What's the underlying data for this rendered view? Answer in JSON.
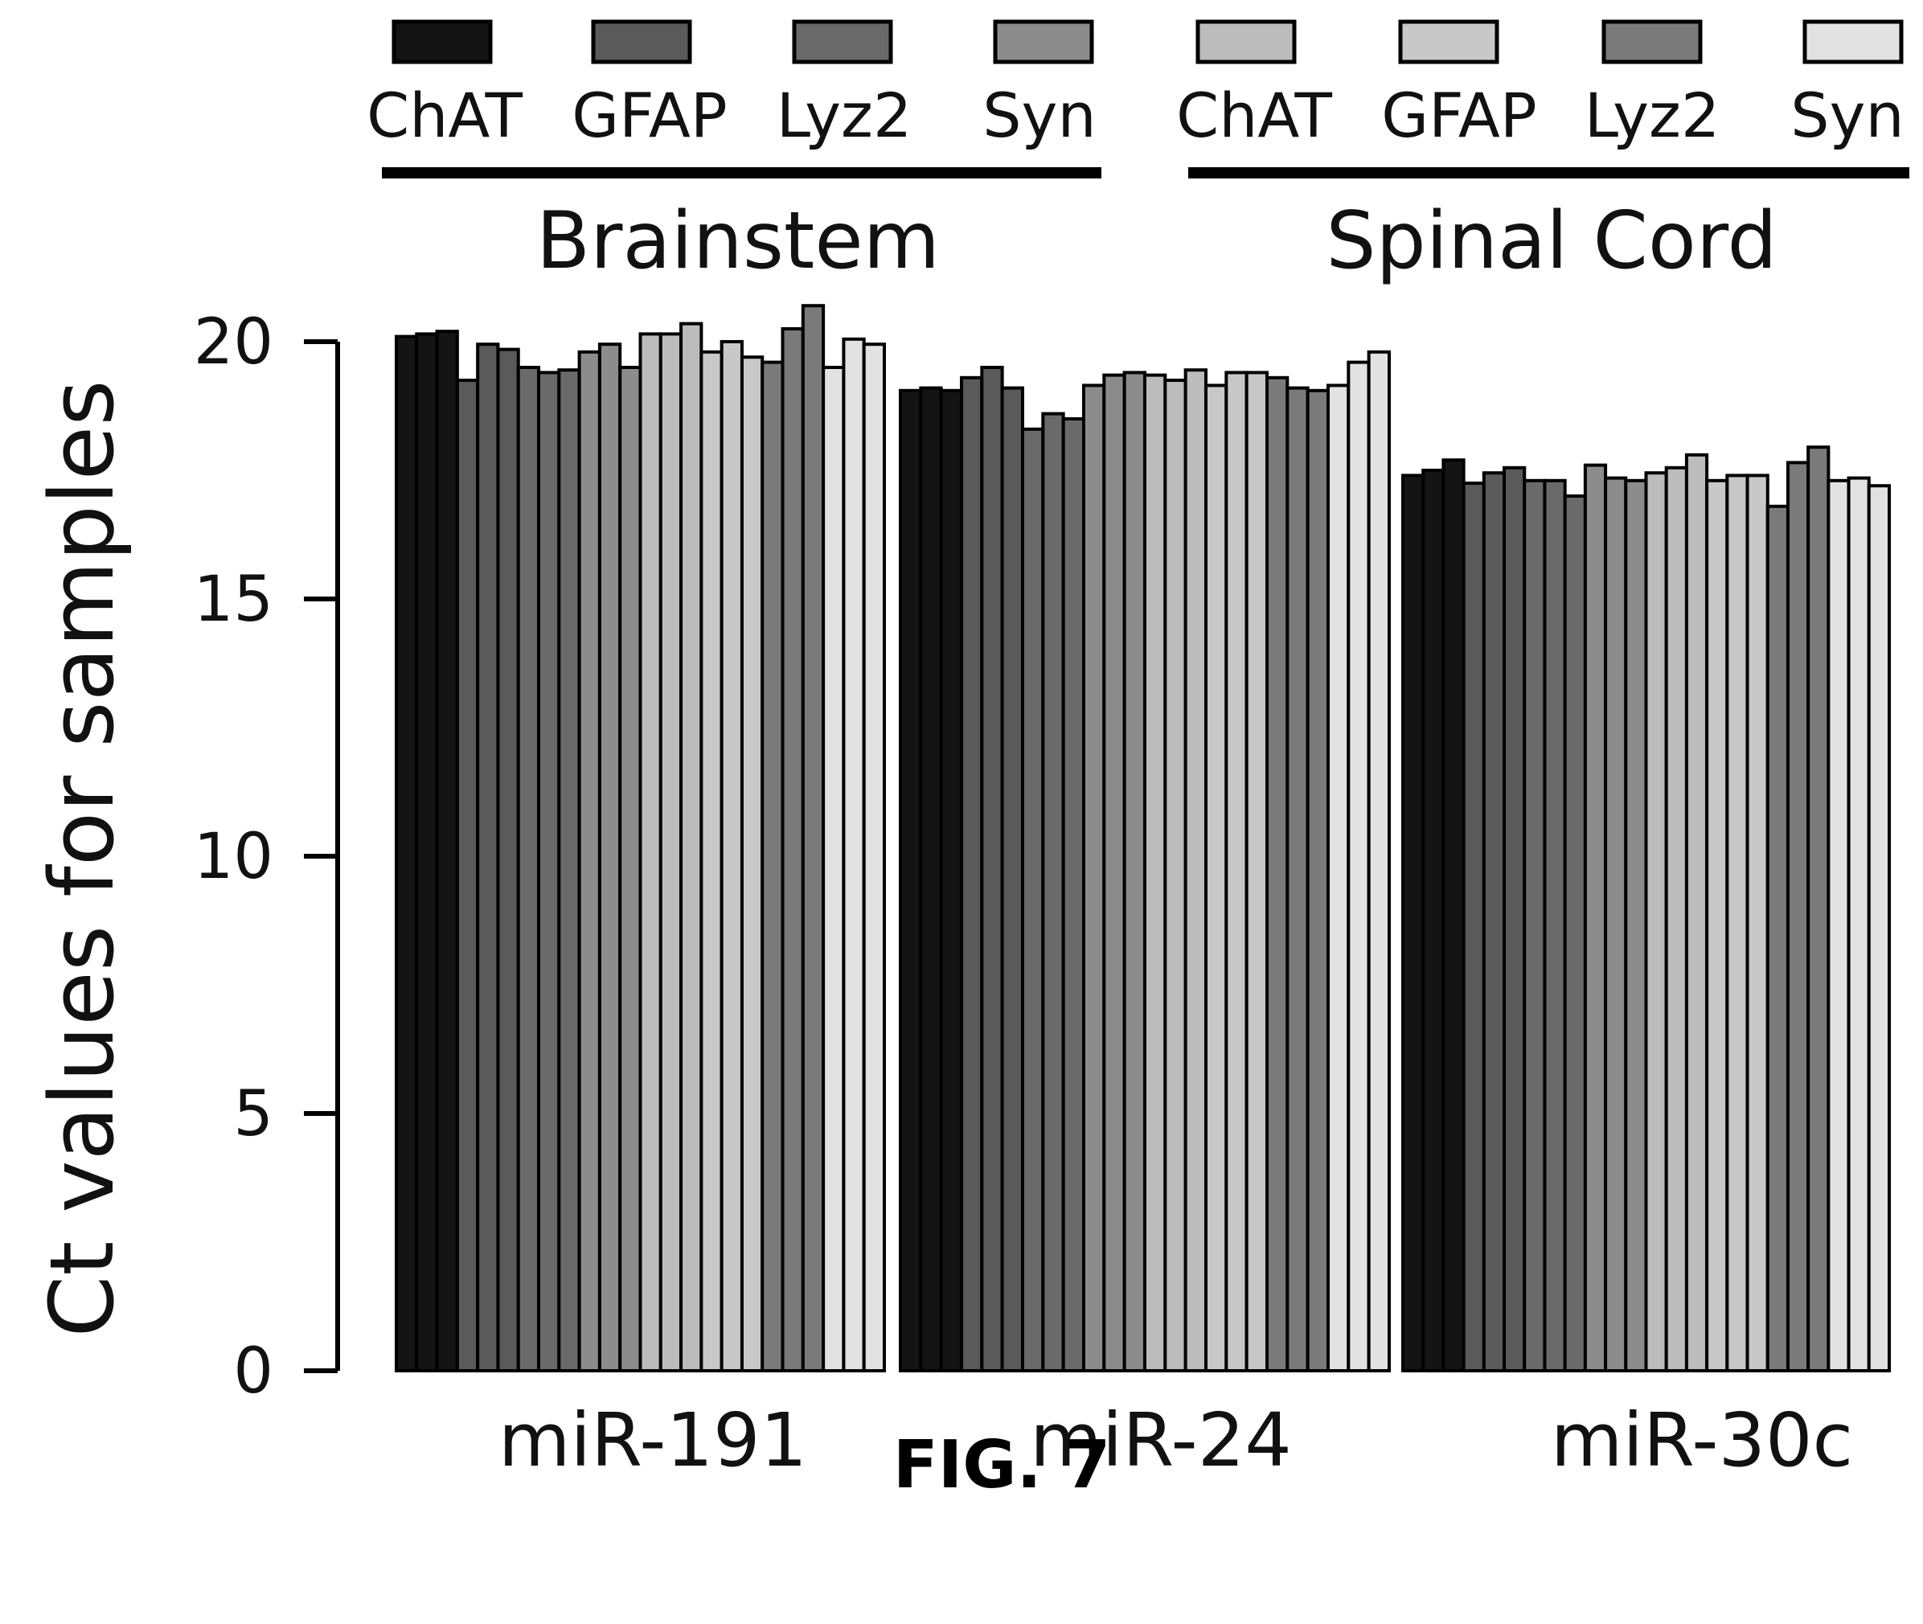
{
  "chart_data": {
    "type": "bar",
    "ylabel": "Ct values for samples",
    "ylim": [
      0,
      20
    ],
    "yticks": [
      "0",
      "5",
      "10",
      "15",
      "20"
    ],
    "grid": false,
    "legend_placement": "top",
    "legend": {
      "groups": [
        {
          "name": "Brainstem",
          "items": [
            {
              "label": "ChAT",
              "color": "#141414"
            },
            {
              "label": "GFAP",
              "color": "#5a5a5a"
            },
            {
              "label": "Lyz2",
              "color": "#6a6a6a"
            },
            {
              "label": "Syn",
              "color": "#8c8c8c"
            }
          ]
        },
        {
          "name": "Spinal Cord",
          "items": [
            {
              "label": "ChAT",
              "color": "#bcbcbc"
            },
            {
              "label": "GFAP",
              "color": "#c8c8c8"
            },
            {
              "label": "Lyz2",
              "color": "#7a7a7a"
            },
            {
              "label": "Syn",
              "color": "#e2e2e2"
            }
          ]
        }
      ]
    },
    "categories": [
      "miR-191",
      "miR-24",
      "miR-30c"
    ],
    "bars_per_category": [
      {
        "category": "miR-191",
        "values": [
          20.1,
          20.15,
          20.2,
          19.25,
          19.95,
          19.85,
          19.5,
          19.4,
          19.45,
          19.8,
          19.95,
          19.5,
          20.15,
          20.15,
          20.35,
          19.8,
          20.0,
          19.7,
          19.6,
          20.25,
          20.7,
          19.5,
          20.05,
          19.95
        ],
        "colors": [
          "#141414",
          "#141414",
          "#141414",
          "#5a5a5a",
          "#5a5a5a",
          "#5a5a5a",
          "#6a6a6a",
          "#6a6a6a",
          "#6a6a6a",
          "#8c8c8c",
          "#8c8c8c",
          "#8c8c8c",
          "#bcbcbc",
          "#bcbcbc",
          "#bcbcbc",
          "#c8c8c8",
          "#c8c8c8",
          "#c8c8c8",
          "#7a7a7a",
          "#7a7a7a",
          "#7a7a7a",
          "#e2e2e2",
          "#e2e2e2",
          "#e2e2e2"
        ]
      },
      {
        "category": "miR-24",
        "values": [
          19.05,
          19.1,
          19.05,
          19.3,
          19.5,
          19.1,
          18.3,
          18.6,
          18.5,
          19.15,
          19.35,
          19.4,
          19.35,
          19.25,
          19.45,
          19.15,
          19.4,
          19.4,
          19.3,
          19.1,
          19.05,
          19.15,
          19.6,
          19.8
        ],
        "colors": [
          "#141414",
          "#141414",
          "#141414",
          "#5a5a5a",
          "#5a5a5a",
          "#5a5a5a",
          "#6a6a6a",
          "#6a6a6a",
          "#6a6a6a",
          "#8c8c8c",
          "#8c8c8c",
          "#8c8c8c",
          "#bcbcbc",
          "#bcbcbc",
          "#bcbcbc",
          "#c8c8c8",
          "#c8c8c8",
          "#c8c8c8",
          "#7a7a7a",
          "#7a7a7a",
          "#7a7a7a",
          "#e2e2e2",
          "#e2e2e2",
          "#e2e2e2"
        ]
      },
      {
        "category": "miR-30c",
        "values": [
          17.4,
          17.5,
          17.7,
          17.25,
          17.45,
          17.55,
          17.3,
          17.3,
          17.0,
          17.6,
          17.35,
          17.3,
          17.45,
          17.55,
          17.8,
          17.3,
          17.4,
          17.4,
          16.8,
          17.65,
          17.95,
          17.3,
          17.35,
          17.2
        ],
        "colors": [
          "#141414",
          "#141414",
          "#141414",
          "#5a5a5a",
          "#5a5a5a",
          "#5a5a5a",
          "#6a6a6a",
          "#6a6a6a",
          "#6a6a6a",
          "#8c8c8c",
          "#8c8c8c",
          "#8c8c8c",
          "#bcbcbc",
          "#bcbcbc",
          "#bcbcbc",
          "#c8c8c8",
          "#c8c8c8",
          "#c8c8c8",
          "#7a7a7a",
          "#7a7a7a",
          "#7a7a7a",
          "#e2e2e2",
          "#e2e2e2",
          "#e2e2e2"
        ]
      }
    ]
  },
  "figure_label": "FIG. 7"
}
